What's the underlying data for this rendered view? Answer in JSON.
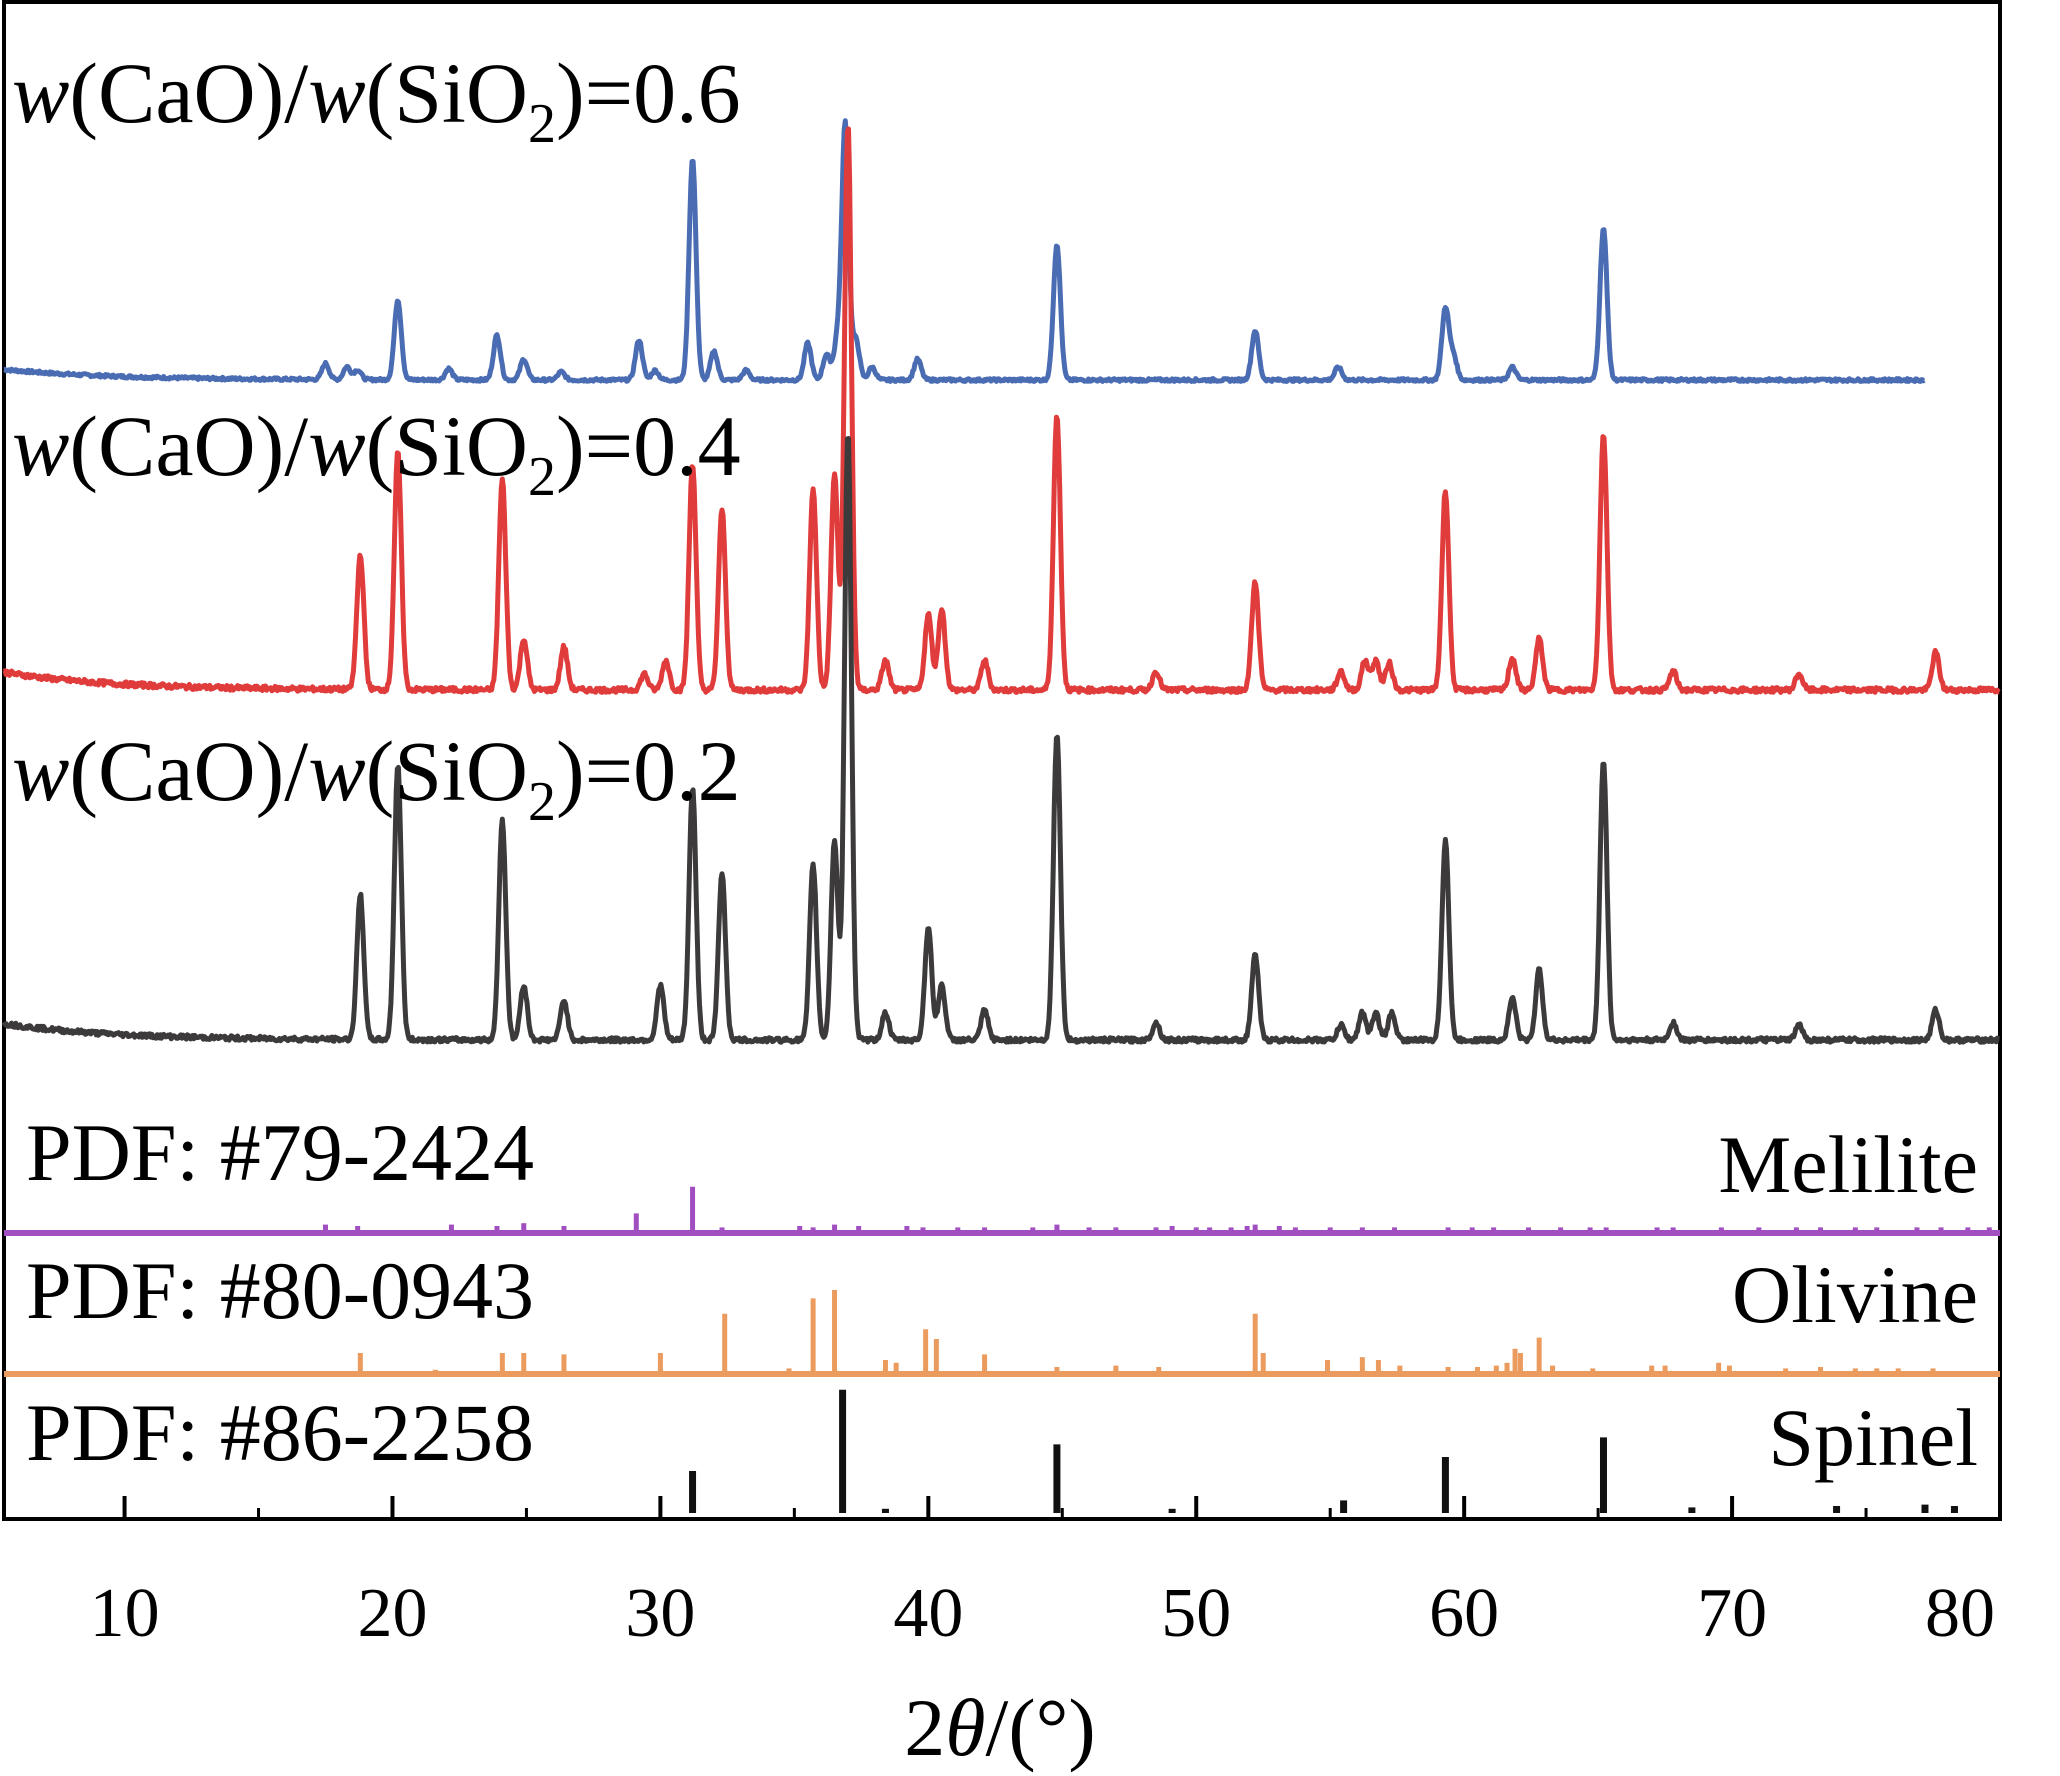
{
  "chart_data": {
    "type": "line",
    "xlabel_parts": {
      "symbol": "θ",
      "prefix": "2",
      "unit": "/(°)"
    },
    "xlim": [
      5.5,
      80
    ],
    "xticks": [
      10,
      20,
      30,
      40,
      50,
      60,
      70,
      80
    ],
    "grid": false,
    "series": [
      {
        "name": "w(CaO)/w(SiO2)=0.6",
        "label_parts": {
          "w": "w",
          "a": "(CaO)/",
          "b": "(SiO",
          "sub": "2",
          "c": ")=0.6"
        },
        "color": "#4a6cb3",
        "xmax": 77.2,
        "baseline": 0.3,
        "peaks": [
          [
            17.5,
            1
          ],
          [
            18.3,
            0.8
          ],
          [
            18.7,
            0.6
          ],
          [
            20.2,
            5
          ],
          [
            22.1,
            0.7
          ],
          [
            23.9,
            2.8
          ],
          [
            24.9,
            1.3
          ],
          [
            26.3,
            0.5
          ],
          [
            29.2,
            2.5
          ],
          [
            29.8,
            0.6
          ],
          [
            31.2,
            13.8
          ],
          [
            32.0,
            1.8
          ],
          [
            33.2,
            0.6
          ],
          [
            35.5,
            2.3
          ],
          [
            36.2,
            1.6
          ],
          [
            36.6,
            2.4
          ],
          [
            36.9,
            16
          ],
          [
            37.3,
            2.5
          ],
          [
            37.9,
            0.8
          ],
          [
            39.6,
            1.3
          ],
          [
            44.8,
            8.5
          ],
          [
            52.2,
            3.1
          ],
          [
            55.3,
            0.8
          ],
          [
            59.3,
            4.5
          ],
          [
            59.6,
            1.5
          ],
          [
            61.8,
            0.8
          ],
          [
            65.2,
            9.5
          ]
        ]
      },
      {
        "name": "w(CaO)/w(SiO2)=0.4",
        "label_parts": {
          "w": "w",
          "a": "(CaO)/",
          "b": "(SiO",
          "sub": "2",
          "c": ")=0.4"
        },
        "color": "#e03c3c",
        "xmax": 80,
        "baseline": 0.3,
        "peaks": [
          [
            18.8,
            5
          ],
          [
            20.2,
            8.8
          ],
          [
            24.1,
            7.8
          ],
          [
            24.9,
            1.9
          ],
          [
            26.4,
            1.6
          ],
          [
            29.4,
            0.6
          ],
          [
            30.2,
            1.1
          ],
          [
            31.2,
            8.4
          ],
          [
            32.3,
            6.7
          ],
          [
            35.7,
            7.4
          ],
          [
            36.5,
            8.0
          ],
          [
            37.0,
            21
          ],
          [
            38.4,
            1.1
          ],
          [
            40.0,
            2.8
          ],
          [
            40.5,
            3.0
          ],
          [
            42.1,
            1.1
          ],
          [
            44.8,
            10.2
          ],
          [
            48.5,
            0.7
          ],
          [
            52.2,
            4.0
          ],
          [
            55.4,
            0.7
          ],
          [
            56.3,
            1.1
          ],
          [
            56.7,
            1.1
          ],
          [
            57.2,
            1.0
          ],
          [
            59.3,
            7.4
          ],
          [
            61.8,
            1.2
          ],
          [
            62.8,
            1.9
          ],
          [
            65.2,
            9.5
          ],
          [
            67.8,
            0.7
          ],
          [
            72.5,
            0.6
          ],
          [
            77.6,
            1.4
          ]
        ]
      },
      {
        "name": "w(CaO)/w(SiO2)=0.2",
        "label_parts": {
          "w": "w",
          "a": "(CaO)/",
          "b": "(SiO",
          "sub": "2",
          "c": ")=0.2"
        },
        "color": "#3c3a3a",
        "xmax": 80,
        "baseline": 0.3,
        "peaks": [
          [
            18.8,
            5.8
          ],
          [
            20.2,
            11
          ],
          [
            24.1,
            8.8
          ],
          [
            24.9,
            2.2
          ],
          [
            26.4,
            1.6
          ],
          [
            30.0,
            2.2
          ],
          [
            31.2,
            10.1
          ],
          [
            32.3,
            6.7
          ],
          [
            35.7,
            7.0
          ],
          [
            36.5,
            8.0
          ],
          [
            37.0,
            24.3
          ],
          [
            38.4,
            1.1
          ],
          [
            40.0,
            4.5
          ],
          [
            40.5,
            2.2
          ],
          [
            42.1,
            1.2
          ],
          [
            44.8,
            12.3
          ],
          [
            48.5,
            0.7
          ],
          [
            52.2,
            3.4
          ],
          [
            55.4,
            0.6
          ],
          [
            56.2,
            1.1
          ],
          [
            56.7,
            1.1
          ],
          [
            57.3,
            1.1
          ],
          [
            59.3,
            8.0
          ],
          [
            61.8,
            1.7
          ],
          [
            62.8,
            2.8
          ],
          [
            65.2,
            11.2
          ],
          [
            67.8,
            0.7
          ],
          [
            72.5,
            0.6
          ],
          [
            77.6,
            1.2
          ]
        ]
      }
    ],
    "references": [
      {
        "name": "Melilite",
        "pdf": "PDF: #79-2424",
        "color": "#a04ec0",
        "sticks": [
          [
            17.5,
            0.6
          ],
          [
            18.7,
            0.5
          ],
          [
            22.2,
            0.6
          ],
          [
            23.9,
            0.5
          ],
          [
            24.9,
            0.7
          ],
          [
            26.4,
            0.5
          ],
          [
            29.1,
            1.4
          ],
          [
            31.2,
            3.3
          ],
          [
            32.3,
            0.4
          ],
          [
            35.2,
            0.5
          ],
          [
            35.7,
            0.4
          ],
          [
            36.5,
            0.6
          ],
          [
            37.4,
            0.5
          ],
          [
            39.2,
            0.5
          ],
          [
            39.8,
            0.4
          ],
          [
            41.1,
            0.4
          ],
          [
            42.1,
            0.4
          ],
          [
            43.9,
            0.4
          ],
          [
            44.8,
            0.6
          ],
          [
            46.0,
            0.4
          ],
          [
            47.0,
            0.4
          ],
          [
            48.5,
            0.4
          ],
          [
            49.1,
            0.5
          ],
          [
            50.0,
            0.4
          ],
          [
            50.5,
            0.4
          ],
          [
            51.3,
            0.4
          ],
          [
            51.9,
            0.5
          ],
          [
            52.2,
            0.6
          ],
          [
            53.1,
            0.5
          ],
          [
            53.7,
            0.4
          ],
          [
            55.0,
            0.4
          ],
          [
            56.2,
            0.4
          ],
          [
            57.4,
            0.4
          ],
          [
            59.4,
            0.4
          ],
          [
            60.3,
            0.4
          ],
          [
            61.1,
            0.4
          ],
          [
            62.4,
            0.4
          ],
          [
            63.6,
            0.4
          ],
          [
            64.7,
            0.4
          ],
          [
            65.3,
            0.4
          ],
          [
            67.2,
            0.4
          ],
          [
            67.8,
            0.4
          ],
          [
            69.6,
            0.4
          ],
          [
            71.0,
            0.4
          ],
          [
            72.4,
            0.4
          ],
          [
            73.3,
            0.4
          ],
          [
            74.6,
            0.4
          ],
          [
            75.4,
            0.4
          ],
          [
            76.9,
            0.4
          ],
          [
            77.8,
            0.4
          ],
          [
            78.8,
            0.4
          ],
          [
            79.6,
            0.4
          ]
        ]
      },
      {
        "name": "Olivine",
        "pdf": "PDF: #80-0943",
        "color": "#eb9b5d",
        "sticks": [
          [
            18.8,
            1.5
          ],
          [
            21.6,
            0.3
          ],
          [
            24.1,
            1.5
          ],
          [
            24.9,
            1.5
          ],
          [
            26.4,
            1.4
          ],
          [
            30.0,
            1.5
          ],
          [
            32.4,
            4.3
          ],
          [
            34.8,
            0.4
          ],
          [
            35.7,
            5.4
          ],
          [
            36.5,
            6.0
          ],
          [
            38.4,
            1.0
          ],
          [
            38.8,
            0.8
          ],
          [
            39.9,
            3.2
          ],
          [
            40.3,
            2.5
          ],
          [
            42.1,
            1.4
          ],
          [
            44.8,
            0.5
          ],
          [
            47.0,
            0.6
          ],
          [
            48.6,
            0.5
          ],
          [
            52.2,
            4.3
          ],
          [
            52.5,
            1.5
          ],
          [
            54.9,
            1.0
          ],
          [
            56.2,
            1.2
          ],
          [
            56.8,
            1.0
          ],
          [
            57.6,
            0.6
          ],
          [
            59.4,
            0.5
          ],
          [
            60.5,
            0.5
          ],
          [
            61.2,
            0.6
          ],
          [
            61.6,
            0.8
          ],
          [
            61.9,
            1.8
          ],
          [
            62.1,
            1.5
          ],
          [
            62.8,
            2.6
          ],
          [
            63.3,
            0.6
          ],
          [
            64.8,
            0.4
          ],
          [
            67.0,
            0.6
          ],
          [
            67.5,
            0.6
          ],
          [
            69.5,
            0.8
          ],
          [
            69.9,
            0.6
          ],
          [
            72.0,
            0.4
          ],
          [
            73.3,
            0.5
          ],
          [
            74.6,
            0.4
          ],
          [
            75.4,
            0.4
          ],
          [
            76.2,
            0.4
          ],
          [
            77.5,
            0.4
          ]
        ]
      },
      {
        "name": "Spinel",
        "pdf": "PDF: #86-2258",
        "color": "#111111",
        "sticks": [
          [
            31.2,
            3.0
          ],
          [
            36.8,
            8.8
          ],
          [
            38.4,
            0.3
          ],
          [
            44.8,
            4.9
          ],
          [
            49.1,
            0.3
          ],
          [
            55.5,
            0.9
          ],
          [
            59.3,
            4.0
          ],
          [
            65.2,
            5.4
          ],
          [
            68.5,
            0.4
          ],
          [
            73.9,
            0.5
          ],
          [
            77.2,
            0.6
          ],
          [
            78.3,
            0.5
          ]
        ]
      }
    ]
  }
}
